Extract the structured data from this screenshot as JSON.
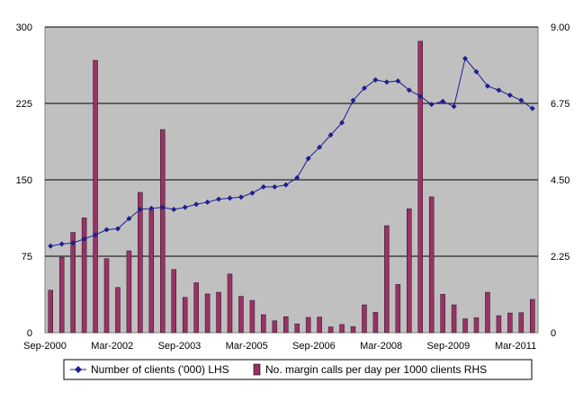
{
  "chart_data": {
    "type": "bar+line",
    "title": "",
    "x_tick_labels": [
      "Sep-2000",
      "Mar-2002",
      "Sep-2003",
      "Mar-2005",
      "Sep-2006",
      "Mar-2008",
      "Sep-2009",
      "Mar-2011"
    ],
    "left_axis": {
      "ylim": [
        0,
        300
      ],
      "ticks": [
        "0",
        "75",
        "150",
        "225",
        "300"
      ]
    },
    "right_axis": {
      "ylim": [
        0,
        9
      ],
      "ticks": [
        "0",
        "2.25",
        "4.50",
        "6.75",
        "9.00"
      ]
    },
    "grid": "horizontal",
    "plot_background": "#c0c0c0",
    "series": [
      {
        "name": "Number of clients ('000) LHS",
        "kind": "line",
        "axis": "left",
        "color": "#1f1f8f",
        "marker": "diamond",
        "values": [
          85,
          87,
          88,
          92,
          96,
          101,
          102,
          112,
          121,
          122,
          123,
          121,
          123,
          126,
          128,
          131,
          132,
          133,
          137,
          143,
          143,
          145,
          152,
          171,
          182,
          194,
          206,
          228,
          240,
          248,
          246,
          247,
          238,
          232,
          224,
          227,
          222,
          269,
          256,
          242,
          238,
          233,
          228,
          220
        ]
      },
      {
        "name": "No. margin calls per day per 1000 clients RHS",
        "kind": "bar",
        "axis": "right",
        "color": "#993366",
        "values": [
          1.25,
          2.22,
          2.95,
          3.38,
          8.02,
          2.18,
          1.33,
          2.41,
          4.13,
          3.62,
          5.98,
          1.86,
          1.04,
          1.47,
          1.14,
          1.19,
          1.73,
          1.07,
          0.95,
          0.53,
          0.35,
          0.47,
          0.26,
          0.45,
          0.46,
          0.17,
          0.24,
          0.18,
          0.82,
          0.6,
          3.15,
          1.42,
          3.65,
          8.58,
          4.0,
          1.13,
          0.82,
          0.41,
          0.44,
          1.19,
          0.5,
          0.58,
          0.59,
          0.98
        ]
      }
    ]
  }
}
